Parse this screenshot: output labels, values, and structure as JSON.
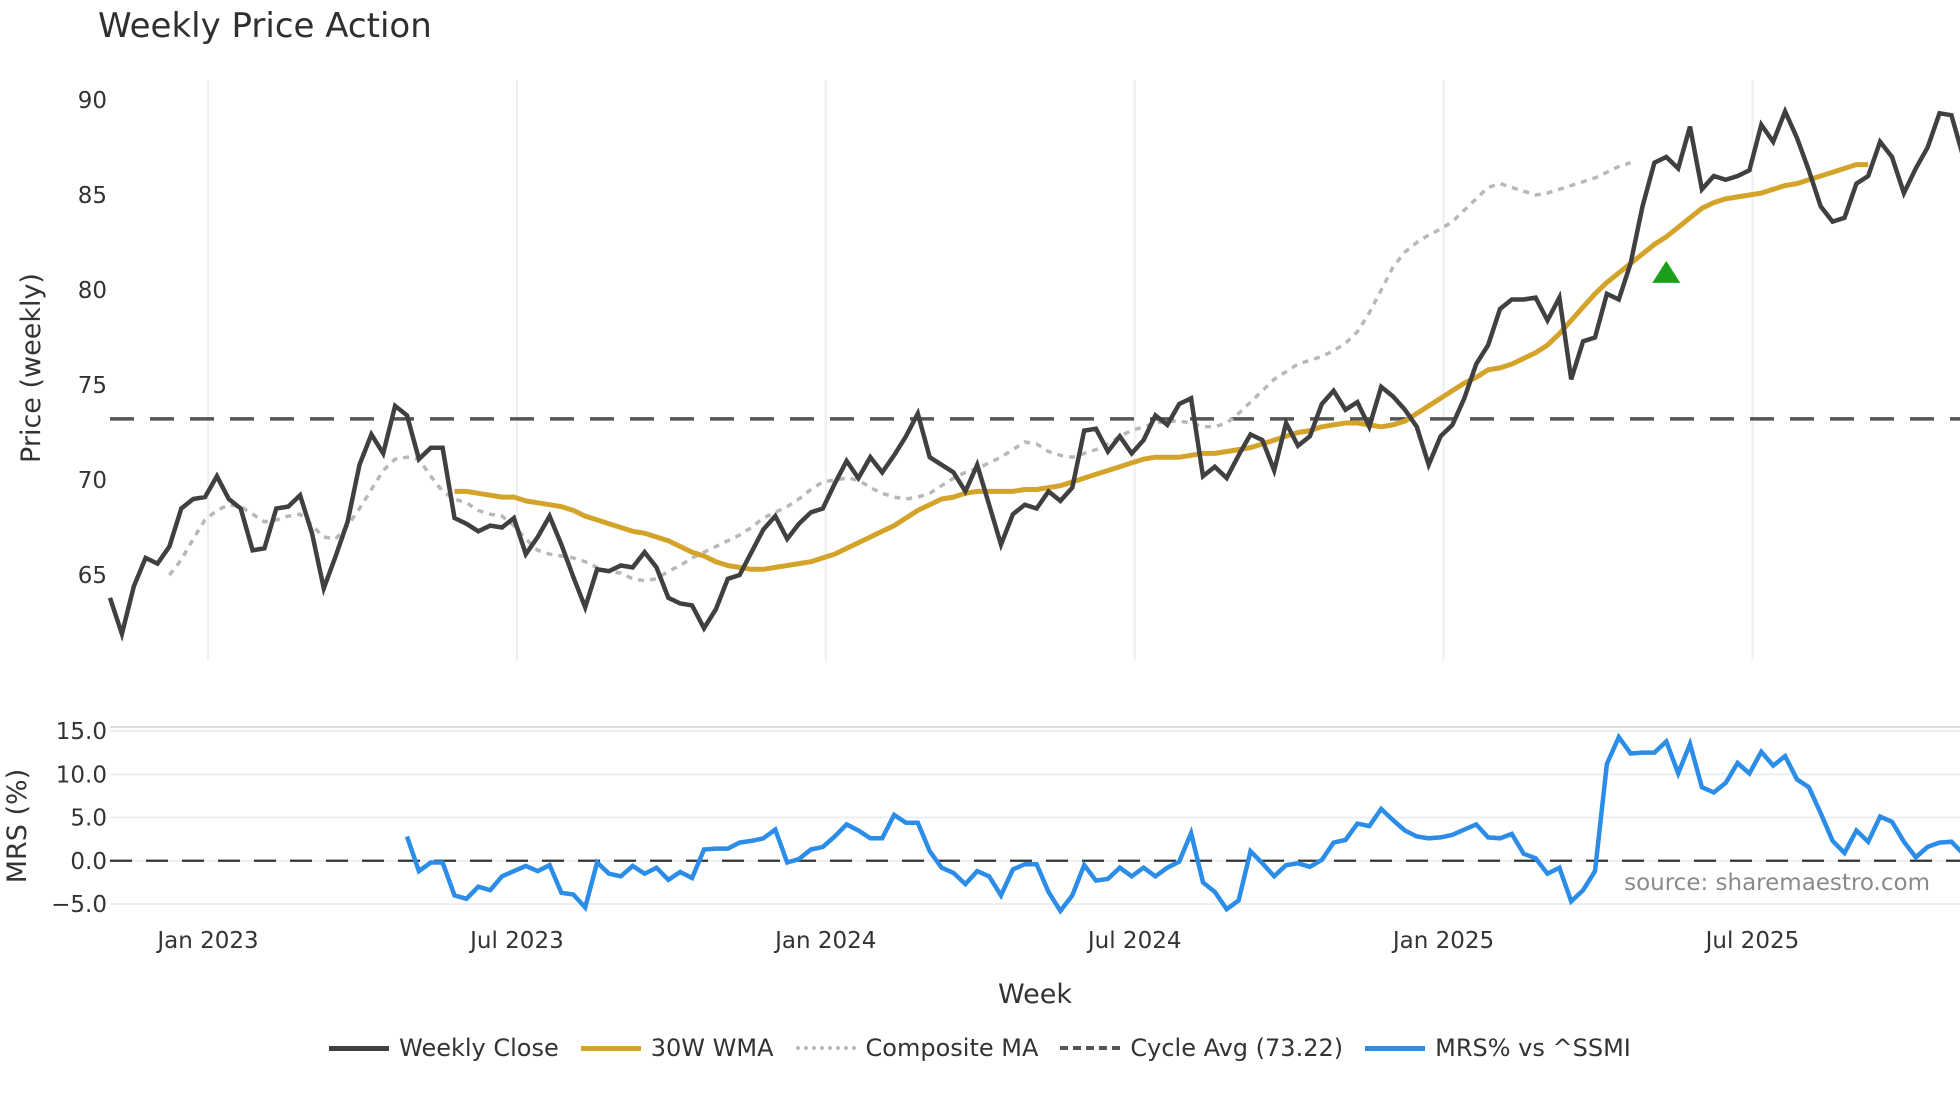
{
  "title": "Weekly Price Action",
  "source": "source: sharemaestro.com",
  "colors": {
    "close": "#404040",
    "wma": "#d4a42a",
    "composite": "#b8b8b8",
    "cycle": "#555555",
    "mrs": "#2b8de8",
    "signal": "#1aa01a",
    "grid": "#eceff2"
  },
  "legend": [
    {
      "name": "Weekly Close",
      "style": "solid",
      "color": "#404040"
    },
    {
      "name": "30W WMA",
      "style": "solid",
      "color": "#d4a42a"
    },
    {
      "name": "Composite MA",
      "style": "dotted",
      "color": "#b8b8b8"
    },
    {
      "name": "Cycle Avg (73.22)",
      "style": "dashed",
      "color": "#555555"
    },
    {
      "name": "MRS% vs ^SSMI",
      "style": "solid",
      "color": "#2b8de8"
    }
  ],
  "chart_data": [
    {
      "type": "line",
      "title": "Weekly Price Action",
      "xlabel": "Week",
      "ylabel": "Price (weekly)",
      "ylim": [
        60.3,
        90.8
      ],
      "yticks": [
        65,
        70,
        75,
        80,
        85,
        90
      ],
      "xticks": [
        "Jan 2023",
        "Jul 2023",
        "Jan 2024",
        "Jul 2024",
        "Jan 2025",
        "Jul 2025"
      ],
      "grid": true,
      "x_start": "2022-11-07",
      "x_step": "1 week",
      "cycle_avg": 73.22,
      "signal_marker": {
        "type": "triangle-up",
        "week_index": 131,
        "value": 80.9,
        "color": "#1aa01a"
      },
      "series": [
        {
          "name": "Weekly Close",
          "values": [
            63.8,
            61.9,
            64.4,
            65.9,
            65.6,
            66.5,
            68.5,
            69.0,
            69.1,
            70.2,
            69.0,
            68.5,
            66.3,
            66.4,
            68.5,
            68.6,
            69.2,
            67.2,
            64.3,
            66.0,
            67.8,
            70.8,
            72.4,
            71.4,
            73.9,
            73.4,
            71.1,
            71.7,
            71.7,
            68.0,
            67.7,
            67.3,
            67.6,
            67.5,
            68.0,
            66.1,
            67.0,
            68.1,
            66.6,
            64.9,
            63.3,
            65.3,
            65.2,
            65.5,
            65.4,
            66.2,
            65.4,
            63.8,
            63.5,
            63.4,
            62.2,
            63.2,
            64.8,
            65.0,
            66.2,
            67.4,
            68.1,
            66.9,
            67.7,
            68.3,
            68.5,
            69.8,
            71.0,
            70.1,
            71.2,
            70.4,
            71.3,
            72.3,
            73.5,
            71.2,
            70.8,
            70.4,
            69.4,
            70.8,
            68.7,
            66.6,
            68.2,
            68.7,
            68.5,
            69.4,
            68.9,
            69.6,
            72.6,
            72.7,
            71.5,
            72.3,
            71.4,
            72.1,
            73.4,
            72.9,
            74.0,
            74.3,
            70.2,
            70.7,
            70.1,
            71.3,
            72.4,
            72.1,
            70.5,
            73.0,
            71.8,
            72.3,
            74.0,
            74.7,
            73.7,
            74.1,
            72.8,
            74.9,
            74.4,
            73.7,
            72.8,
            70.8,
            72.3,
            72.9,
            74.3,
            76.1,
            77.1,
            79.0,
            79.5,
            79.5,
            79.6,
            78.4,
            79.6,
            75.3,
            77.3,
            77.5,
            79.8,
            79.5,
            81.4,
            84.4,
            86.7,
            87.0,
            86.4,
            88.6,
            85.3,
            86.0,
            85.8,
            86.0,
            86.3,
            88.7,
            87.8,
            89.4,
            88.0,
            86.3,
            84.4,
            83.6,
            83.8,
            85.6,
            86.0,
            87.8,
            87.0,
            85.1,
            86.4,
            87.5,
            89.3,
            89.2,
            87.0
          ]
        },
        {
          "name": "30W WMA",
          "start_index": 29,
          "values": [
            69.4,
            69.4,
            69.3,
            69.2,
            69.1,
            69.1,
            68.9,
            68.8,
            68.7,
            68.6,
            68.4,
            68.1,
            67.9,
            67.7,
            67.5,
            67.3,
            67.2,
            67.0,
            66.8,
            66.5,
            66.2,
            66.0,
            65.7,
            65.5,
            65.4,
            65.3,
            65.3,
            65.4,
            65.5,
            65.6,
            65.7,
            65.9,
            66.1,
            66.4,
            66.7,
            67.0,
            67.3,
            67.6,
            68.0,
            68.4,
            68.7,
            69.0,
            69.1,
            69.3,
            69.4,
            69.4,
            69.4,
            69.4,
            69.5,
            69.5,
            69.6,
            69.7,
            69.9,
            70.1,
            70.3,
            70.5,
            70.7,
            70.9,
            71.1,
            71.2,
            71.2,
            71.2,
            71.3,
            71.4,
            71.4,
            71.5,
            71.6,
            71.7,
            71.9,
            72.1,
            72.3,
            72.5,
            72.6,
            72.8,
            72.9,
            73.0,
            73.0,
            72.9,
            72.8,
            72.9,
            73.1,
            73.5,
            73.9,
            74.3,
            74.7,
            75.1,
            75.4,
            75.8,
            75.9,
            76.1,
            76.4,
            76.7,
            77.1,
            77.7,
            78.4,
            79.1,
            79.8,
            80.4,
            80.9,
            81.4,
            81.9,
            82.4,
            82.8,
            83.3,
            83.8,
            84.3,
            84.6,
            84.8,
            84.9,
            85.0,
            85.1,
            85.3,
            85.5,
            85.6,
            85.8,
            86.0,
            86.2,
            86.4,
            86.6,
            86.6
          ]
        },
        {
          "name": "Composite MA",
          "start_index": 5,
          "values": [
            65.0,
            65.8,
            66.9,
            67.9,
            68.4,
            68.7,
            68.6,
            68.2,
            67.8,
            67.9,
            68.1,
            68.2,
            67.6,
            67.0,
            66.9,
            67.6,
            68.5,
            69.5,
            70.5,
            71.1,
            71.2,
            71.1,
            70.2,
            69.4,
            69.0,
            68.8,
            68.4,
            68.2,
            68.1,
            67.6,
            66.9,
            66.3,
            66.1,
            66.0,
            65.9,
            65.7,
            65.4,
            65.2,
            65.1,
            64.8,
            64.7,
            64.8,
            65.2,
            65.5,
            65.9,
            66.2,
            66.5,
            66.8,
            67.1,
            67.5,
            68.0,
            68.3,
            68.6,
            69.0,
            69.5,
            69.9,
            70.0,
            70.1,
            70.0,
            69.6,
            69.3,
            69.1,
            69.0,
            69.1,
            69.3,
            69.7,
            70.1,
            70.4,
            70.6,
            70.9,
            71.2,
            71.6,
            72.0,
            71.9,
            71.5,
            71.3,
            71.2,
            71.4,
            71.6,
            71.9,
            72.3,
            72.6,
            72.8,
            73.0,
            73.1,
            73.1,
            73.0,
            72.8,
            72.8,
            73.0,
            73.5,
            74.1,
            74.7,
            75.3,
            75.7,
            76.1,
            76.3,
            76.5,
            76.8,
            77.2,
            77.8,
            78.8,
            80.0,
            81.2,
            82.0,
            82.5,
            82.9,
            83.2,
            83.6,
            84.2,
            84.8,
            85.4,
            85.6,
            85.4,
            85.2,
            85.0,
            85.1,
            85.3,
            85.5,
            85.7,
            85.9,
            86.2,
            86.5,
            86.7
          ]
        },
        {
          "name": "MRS% vs ^SSMI",
          "panel": "lower",
          "start_index": 25,
          "ylim": [
            -6.5,
            16.5
          ],
          "yticks": [
            -5.0,
            0.0,
            5.0,
            10.0,
            15.0
          ],
          "ylabel": "MRS (%)",
          "values": [
            2.8,
            -1.2,
            -0.2,
            -0.2,
            -4.0,
            -4.4,
            -3.0,
            -3.4,
            -1.8,
            -1.2,
            -0.6,
            -1.2,
            -0.5,
            -3.7,
            -3.9,
            -5.4,
            -0.2,
            -1.5,
            -1.8,
            -0.6,
            -1.5,
            -0.8,
            -2.2,
            -1.3,
            -2.0,
            1.3,
            1.4,
            1.4,
            2.1,
            2.3,
            2.6,
            3.6,
            -0.2,
            0.2,
            1.3,
            1.6,
            2.8,
            4.2,
            3.5,
            2.6,
            2.6,
            5.3,
            4.4,
            4.4,
            1.1,
            -0.8,
            -1.4,
            -2.7,
            -1.2,
            -1.8,
            -4.0,
            -1.0,
            -0.4,
            -0.4,
            -3.6,
            -5.8,
            -4.0,
            -0.5,
            -2.3,
            -2.1,
            -0.8,
            -1.8,
            -0.8,
            -1.8,
            -0.8,
            -0.1,
            3.2,
            -2.5,
            -3.6,
            -5.6,
            -4.6,
            1.1,
            -0.3,
            -1.8,
            -0.5,
            -0.3,
            -0.7,
            0.1,
            2.1,
            2.4,
            4.3,
            4.0,
            6.0,
            4.7,
            3.5,
            2.8,
            2.6,
            2.7,
            3.0,
            3.6,
            4.2,
            2.7,
            2.6,
            3.1,
            0.8,
            0.3,
            -1.5,
            -0.8,
            -4.7,
            -3.4,
            -1.2,
            11.2,
            14.3,
            12.4,
            12.5,
            12.5,
            13.8,
            10.1,
            13.5,
            8.5,
            7.9,
            9.0,
            11.3,
            10.1,
            12.6,
            11.0,
            12.1,
            9.4,
            8.5,
            5.5,
            2.3,
            0.9,
            3.5,
            2.2,
            5.1,
            4.5,
            2.2,
            0.4,
            1.6,
            2.1,
            2.2,
            0.8
          ]
        }
      ]
    }
  ]
}
